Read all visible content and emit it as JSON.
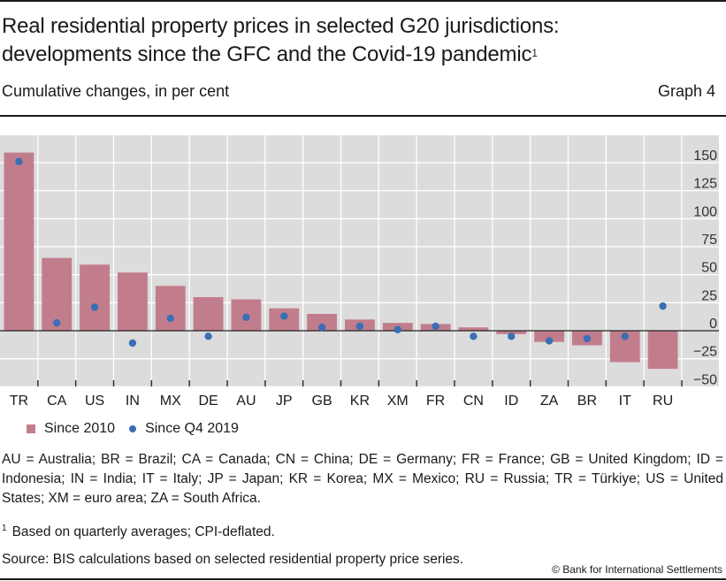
{
  "header": {
    "title_line1": "Real residential property prices in selected G20 jurisdictions:",
    "title_line2": "developments since the GFC and the Covid-19 pandemic",
    "title_footnote_mark": "1",
    "subtitle": "Cumulative changes, in per cent",
    "graph_number": "Graph 4"
  },
  "legend": {
    "items": [
      {
        "label": "Since 2010",
        "marker": "square",
        "color": "#c27d8c"
      },
      {
        "label": "Since Q4 2019",
        "marker": "dot",
        "color": "#3a6fb5"
      }
    ]
  },
  "notes": {
    "abbreviations": "AU = Australia; BR = Brazil; CA = Canada; CN = China; DE = Germany; FR = France; GB = United Kingdom; ID = Indonesia; IN = India; IT = Italy; JP = Japan; KR = Korea; MX = Mexico; RU = Russia; TR = Türkiye; US = United States; XM = euro area; ZA = South Africa.",
    "footnote_mark": "1",
    "footnote": "Based on quarterly averages; CPI-deflated.",
    "source": "Source: BIS calculations based on selected residential property price series.",
    "copyright": "© Bank for International Settlements"
  },
  "chart_data": {
    "type": "bar",
    "title": "Real residential property prices in selected G20 jurisdictions: developments since the GFC and the Covid-19 pandemic",
    "subtitle": "Cumulative changes, in per cent",
    "xlabel": "",
    "ylabel": "",
    "categories": [
      "TR",
      "CA",
      "US",
      "IN",
      "MX",
      "DE",
      "AU",
      "JP",
      "GB",
      "KR",
      "XM",
      "FR",
      "CN",
      "ID",
      "ZA",
      "BR",
      "IT",
      "RU"
    ],
    "series": [
      {
        "name": "Since 2010",
        "type": "bar",
        "color": "#c27d8c",
        "values": [
          159,
          65,
          59,
          52,
          40,
          30,
          28,
          20,
          15,
          10,
          7,
          6,
          3,
          -3,
          -10,
          -13,
          -28,
          -34
        ]
      },
      {
        "name": "Since Q4 2019",
        "type": "scatter",
        "color": "#3a6fb5",
        "values": [
          151,
          7,
          21,
          -11,
          11,
          -5,
          12,
          13,
          3,
          4,
          1,
          4,
          -5,
          -5,
          -9,
          -7,
          -5,
          22
        ]
      }
    ],
    "ylim": [
      -55,
      175
    ],
    "yticks": [
      -50,
      -25,
      0,
      25,
      50,
      75,
      100,
      125,
      150
    ],
    "ytick_labels": [
      "−50",
      "−25",
      "0",
      "25",
      "50",
      "75",
      "100",
      "125",
      "150"
    ],
    "y_axis_side": "right",
    "grid": true,
    "legend_position": "bottom-left"
  }
}
